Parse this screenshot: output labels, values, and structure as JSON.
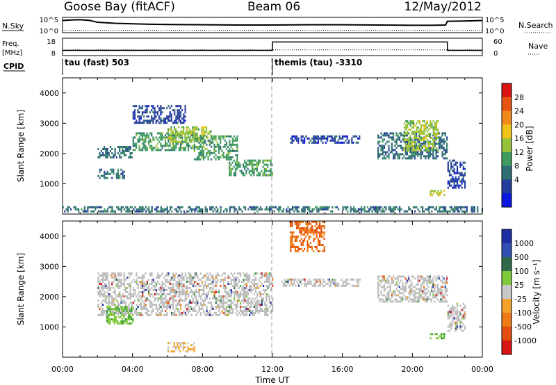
{
  "header": {
    "station": "Goose Bay (fitACF)",
    "beam": "Beam 06",
    "date": "12/May/2012"
  },
  "colors": {
    "power_scale": [
      "#0a18e0",
      "#243c9c",
      "#2e6e74",
      "#3f9b5f",
      "#97c33a",
      "#f2c21c",
      "#f08a1c",
      "#e85512",
      "#d91410"
    ],
    "velocity_scale": [
      "#1d2da5",
      "#2f4fb0",
      "#2f6b4a",
      "#3f9f3f",
      "#7ec83a",
      "#c9c9c9",
      "#f2a12a",
      "#ee7a18",
      "#e34d10",
      "#d71414"
    ],
    "ground_scatter": "#bdbdbd"
  },
  "chart_data": [
    {
      "name": "noise-panel",
      "type": "line",
      "left_label": "N.Sky",
      "right_label": "N.Search",
      "left_ticks": [
        "10^5",
        "10^0"
      ],
      "right_ticks": [
        "10^5",
        "10^0"
      ],
      "x": [
        0,
        0.5,
        1,
        1.5,
        2,
        3,
        4,
        5,
        6,
        8,
        10,
        12,
        14,
        16,
        18,
        20,
        21,
        21.9,
        22,
        23,
        24
      ],
      "series": [
        {
          "values": [
            4.3,
            4.5,
            4.6,
            4.4,
            3.6,
            3.2,
            3.0,
            2.8,
            2.7,
            2.6,
            2.5,
            2.5,
            2.6,
            2.6,
            2.5,
            2.4,
            2.4,
            2.5,
            4.0,
            4.1,
            4.3
          ]
        },
        {
          "style": "dotted",
          "values": [
            0.4,
            0.4,
            0.4,
            0.4,
            0.4,
            0.4,
            0.4,
            0.4,
            0.4,
            0.4,
            0.4,
            0.4,
            0.4,
            0.4,
            0.4,
            0.4,
            0.4,
            0.4,
            0.4,
            0.4,
            0.4
          ]
        }
      ]
    },
    {
      "name": "frequency-panel",
      "type": "line",
      "left_label": "Freq. [MHz]",
      "right_label": "Nave",
      "left_ticks": [
        "18",
        "8"
      ],
      "right_ticks": [
        "60",
        "0"
      ],
      "x": [
        0,
        12,
        12,
        22,
        22,
        24
      ],
      "series": [
        {
          "name": "Freq",
          "values": [
            10.6,
            10.6,
            16.4,
            16.4,
            10.6,
            10.6
          ]
        },
        {
          "name": "Nave",
          "style": "dotted",
          "values": [
            18,
            18,
            18,
            18,
            18,
            18
          ]
        }
      ]
    },
    {
      "name": "cpid-panel",
      "type": "table",
      "label": "CPID",
      "segments": [
        {
          "start": 0,
          "end": 12,
          "text": "tau (fast) 503"
        },
        {
          "start": 12,
          "end": 24,
          "text": "themis (tau) -3310"
        }
      ]
    },
    {
      "name": "power-panel",
      "type": "heatmap",
      "ylabel": "Slant Range [km]",
      "ylim": [
        0,
        4500
      ],
      "yticks": [
        1000,
        2000,
        3000,
        4000
      ],
      "xlim": [
        0,
        24
      ],
      "colorbar": {
        "label": "Power [dB]",
        "ticks": [
          "4",
          "8",
          "12",
          "16",
          "20",
          "24",
          "28"
        ]
      },
      "regions": [
        {
          "start": 2.0,
          "end": 4.0,
          "range": [
            1850,
            2250
          ],
          "value": 8
        },
        {
          "start": 2.0,
          "end": 3.5,
          "range": [
            1200,
            1500
          ],
          "value": 8
        },
        {
          "start": 4.0,
          "end": 7.5,
          "range": [
            2100,
            2700
          ],
          "value": 12
        },
        {
          "start": 6.0,
          "end": 8.5,
          "range": [
            2400,
            2900
          ],
          "value": 16
        },
        {
          "start": 7.5,
          "end": 10.0,
          "range": [
            1800,
            2600
          ],
          "value": 12
        },
        {
          "start": 9.5,
          "end": 12.0,
          "range": [
            1300,
            1800
          ],
          "value": 12
        },
        {
          "start": 4.0,
          "end": 7.0,
          "range": [
            3000,
            3600
          ],
          "value": 4
        },
        {
          "start": 13.0,
          "end": 17.0,
          "range": [
            2350,
            2600
          ],
          "value": 4
        },
        {
          "start": 18.0,
          "end": 22.0,
          "range": [
            1850,
            2700
          ],
          "value": 8
        },
        {
          "start": 19.5,
          "end": 21.5,
          "range": [
            2100,
            3100
          ],
          "value": 16
        },
        {
          "start": 21.0,
          "end": 21.8,
          "range": [
            600,
            800
          ],
          "value": 16
        },
        {
          "start": 22.0,
          "end": 23.0,
          "range": [
            900,
            1800
          ],
          "value": 4
        },
        {
          "start": 0.0,
          "end": 24.0,
          "range": [
            120,
            260
          ],
          "value": 8
        }
      ]
    },
    {
      "name": "velocity-panel",
      "type": "heatmap",
      "ylabel": "Slant Range [km]",
      "xlabel": "Time UT",
      "ylim": [
        0,
        4500
      ],
      "yticks": [
        1000,
        2000,
        3000,
        4000
      ],
      "xlim": [
        0,
        24
      ],
      "xticks": [
        "00:00",
        "04:00",
        "08:00",
        "12:00",
        "16:00",
        "20:00",
        "00:00"
      ],
      "colorbar": {
        "label": "Velocity [m s⁻¹]",
        "ticks": [
          "1000",
          "500",
          "100",
          "25",
          "-25",
          "-100",
          "-500",
          "-1000"
        ]
      },
      "regions": [
        {
          "start": 2.0,
          "end": 12.0,
          "range": [
            1400,
            2800
          ],
          "value": 0
        },
        {
          "start": 2.5,
          "end": 4.0,
          "range": [
            1100,
            1700
          ],
          "value": 100
        },
        {
          "start": 12.5,
          "end": 17.0,
          "range": [
            2350,
            2600
          ],
          "value": 0
        },
        {
          "start": 18.0,
          "end": 22.0,
          "range": [
            1850,
            2700
          ],
          "value": 0
        },
        {
          "start": 13.0,
          "end": 15.0,
          "range": [
            3500,
            4500
          ],
          "value": -500
        },
        {
          "start": 6.0,
          "end": 7.5,
          "range": [
            200,
            500
          ],
          "value": -100
        },
        {
          "start": 21.0,
          "end": 21.8,
          "range": [
            600,
            800
          ],
          "value": 100
        },
        {
          "start": 22.0,
          "end": 23.0,
          "range": [
            900,
            1800
          ],
          "value": 0
        }
      ]
    }
  ]
}
